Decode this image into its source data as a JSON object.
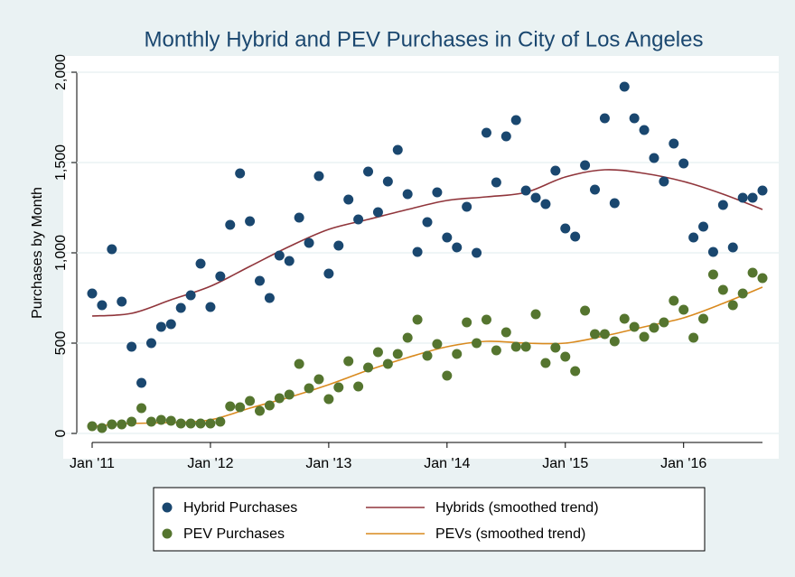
{
  "chart_data": {
    "type": "scatter",
    "title": "Monthly Hybrid and PEV Purchases in City of Los Angeles",
    "y_label": "Purchases by Month",
    "xlim": [
      0,
      68
    ],
    "xticks": [
      {
        "value": 0,
        "label": "Jan '11"
      },
      {
        "value": 12,
        "label": "Jan '12"
      },
      {
        "value": 24,
        "label": "Jan '13"
      },
      {
        "value": 36,
        "label": "Jan '14"
      },
      {
        "value": 48,
        "label": "Jan '15"
      },
      {
        "value": 60,
        "label": "Jan '16"
      }
    ],
    "ylim": [
      0,
      2000
    ],
    "yticks": [
      0,
      500,
      {
        "value": 1000,
        "label": "1,000"
      },
      {
        "value": 1500,
        "label": "1,500"
      },
      {
        "value": 2000,
        "label": "2,000"
      }
    ],
    "grid": true,
    "legend": "bottom",
    "series": [
      {
        "name": "Hybrid Purchases",
        "style": "markers",
        "color": "#1a476f",
        "x": [
          0,
          1,
          2,
          3,
          4,
          5,
          6,
          7,
          8,
          9,
          10,
          11,
          12,
          13,
          14,
          15,
          16,
          17,
          18,
          19,
          20,
          21,
          22,
          23,
          24,
          25,
          26,
          27,
          28,
          29,
          30,
          31,
          32,
          33,
          34,
          35,
          36,
          37,
          38,
          39,
          40,
          41,
          42,
          43,
          44,
          45,
          46,
          47,
          48,
          49,
          50,
          51,
          52,
          53,
          54,
          55,
          56,
          57,
          58,
          59,
          60,
          61,
          62,
          63,
          64,
          65,
          66,
          67,
          68
        ],
        "values": [
          775,
          710,
          1020,
          730,
          480,
          280,
          500,
          590,
          605,
          695,
          765,
          940,
          700,
          870,
          1155,
          1440,
          1175,
          845,
          750,
          985,
          955,
          1195,
          1055,
          1425,
          885,
          1040,
          1295,
          1185,
          1450,
          1225,
          1395,
          1570,
          1325,
          1005,
          1170,
          1335,
          1085,
          1030,
          1255,
          1000,
          1665,
          1390,
          1645,
          1735,
          1345,
          1305,
          1270,
          1455,
          1135,
          1090,
          1485,
          1350,
          1745,
          1275,
          1920,
          1745,
          1680,
          1525,
          1395,
          1605,
          1495,
          1085,
          1145,
          1005,
          1265,
          1030,
          1305,
          1305,
          1345
        ]
      },
      {
        "name": "PEV Purchases",
        "style": "markers",
        "color": "#55752f",
        "x": [
          0,
          1,
          2,
          3,
          4,
          5,
          6,
          7,
          8,
          9,
          10,
          11,
          12,
          13,
          14,
          15,
          16,
          17,
          18,
          19,
          20,
          21,
          22,
          23,
          24,
          25,
          26,
          27,
          28,
          29,
          30,
          31,
          32,
          33,
          34,
          35,
          36,
          37,
          38,
          39,
          40,
          41,
          42,
          43,
          44,
          45,
          46,
          47,
          48,
          49,
          50,
          51,
          52,
          53,
          54,
          55,
          56,
          57,
          58,
          59,
          60,
          61,
          62,
          63,
          64,
          65,
          66,
          67,
          68
        ],
        "values": [
          40,
          30,
          50,
          50,
          65,
          140,
          65,
          75,
          70,
          55,
          55,
          55,
          55,
          65,
          150,
          145,
          180,
          125,
          155,
          195,
          215,
          385,
          250,
          300,
          190,
          255,
          400,
          260,
          365,
          450,
          385,
          440,
          530,
          630,
          430,
          495,
          320,
          440,
          615,
          500,
          630,
          460,
          560,
          480,
          480,
          660,
          390,
          475,
          425,
          345,
          680,
          550,
          550,
          510,
          635,
          590,
          535,
          585,
          615,
          735,
          685,
          530,
          635,
          880,
          795,
          710,
          775,
          890,
          860
        ]
      },
      {
        "name": "Hybrids (smoothed trend)",
        "style": "line",
        "color": "#90353b",
        "x": [
          0,
          4,
          8,
          12,
          16,
          20,
          24,
          28,
          32,
          36,
          40,
          44,
          48,
          52,
          56,
          60,
          64,
          68
        ],
        "values": [
          650,
          665,
          740,
          815,
          925,
          1035,
          1130,
          1185,
          1240,
          1290,
          1310,
          1335,
          1420,
          1460,
          1440,
          1395,
          1325,
          1240
        ]
      },
      {
        "name": "PEVs (smoothed trend)",
        "style": "line",
        "color": "#d98a1f",
        "x": [
          0,
          4,
          8,
          12,
          16,
          20,
          24,
          28,
          32,
          36,
          40,
          44,
          48,
          52,
          56,
          60,
          64,
          68
        ],
        "values": [
          40,
          55,
          60,
          75,
          140,
          200,
          270,
          350,
          420,
          480,
          510,
          500,
          500,
          540,
          590,
          640,
          720,
          810
        ]
      }
    ]
  }
}
